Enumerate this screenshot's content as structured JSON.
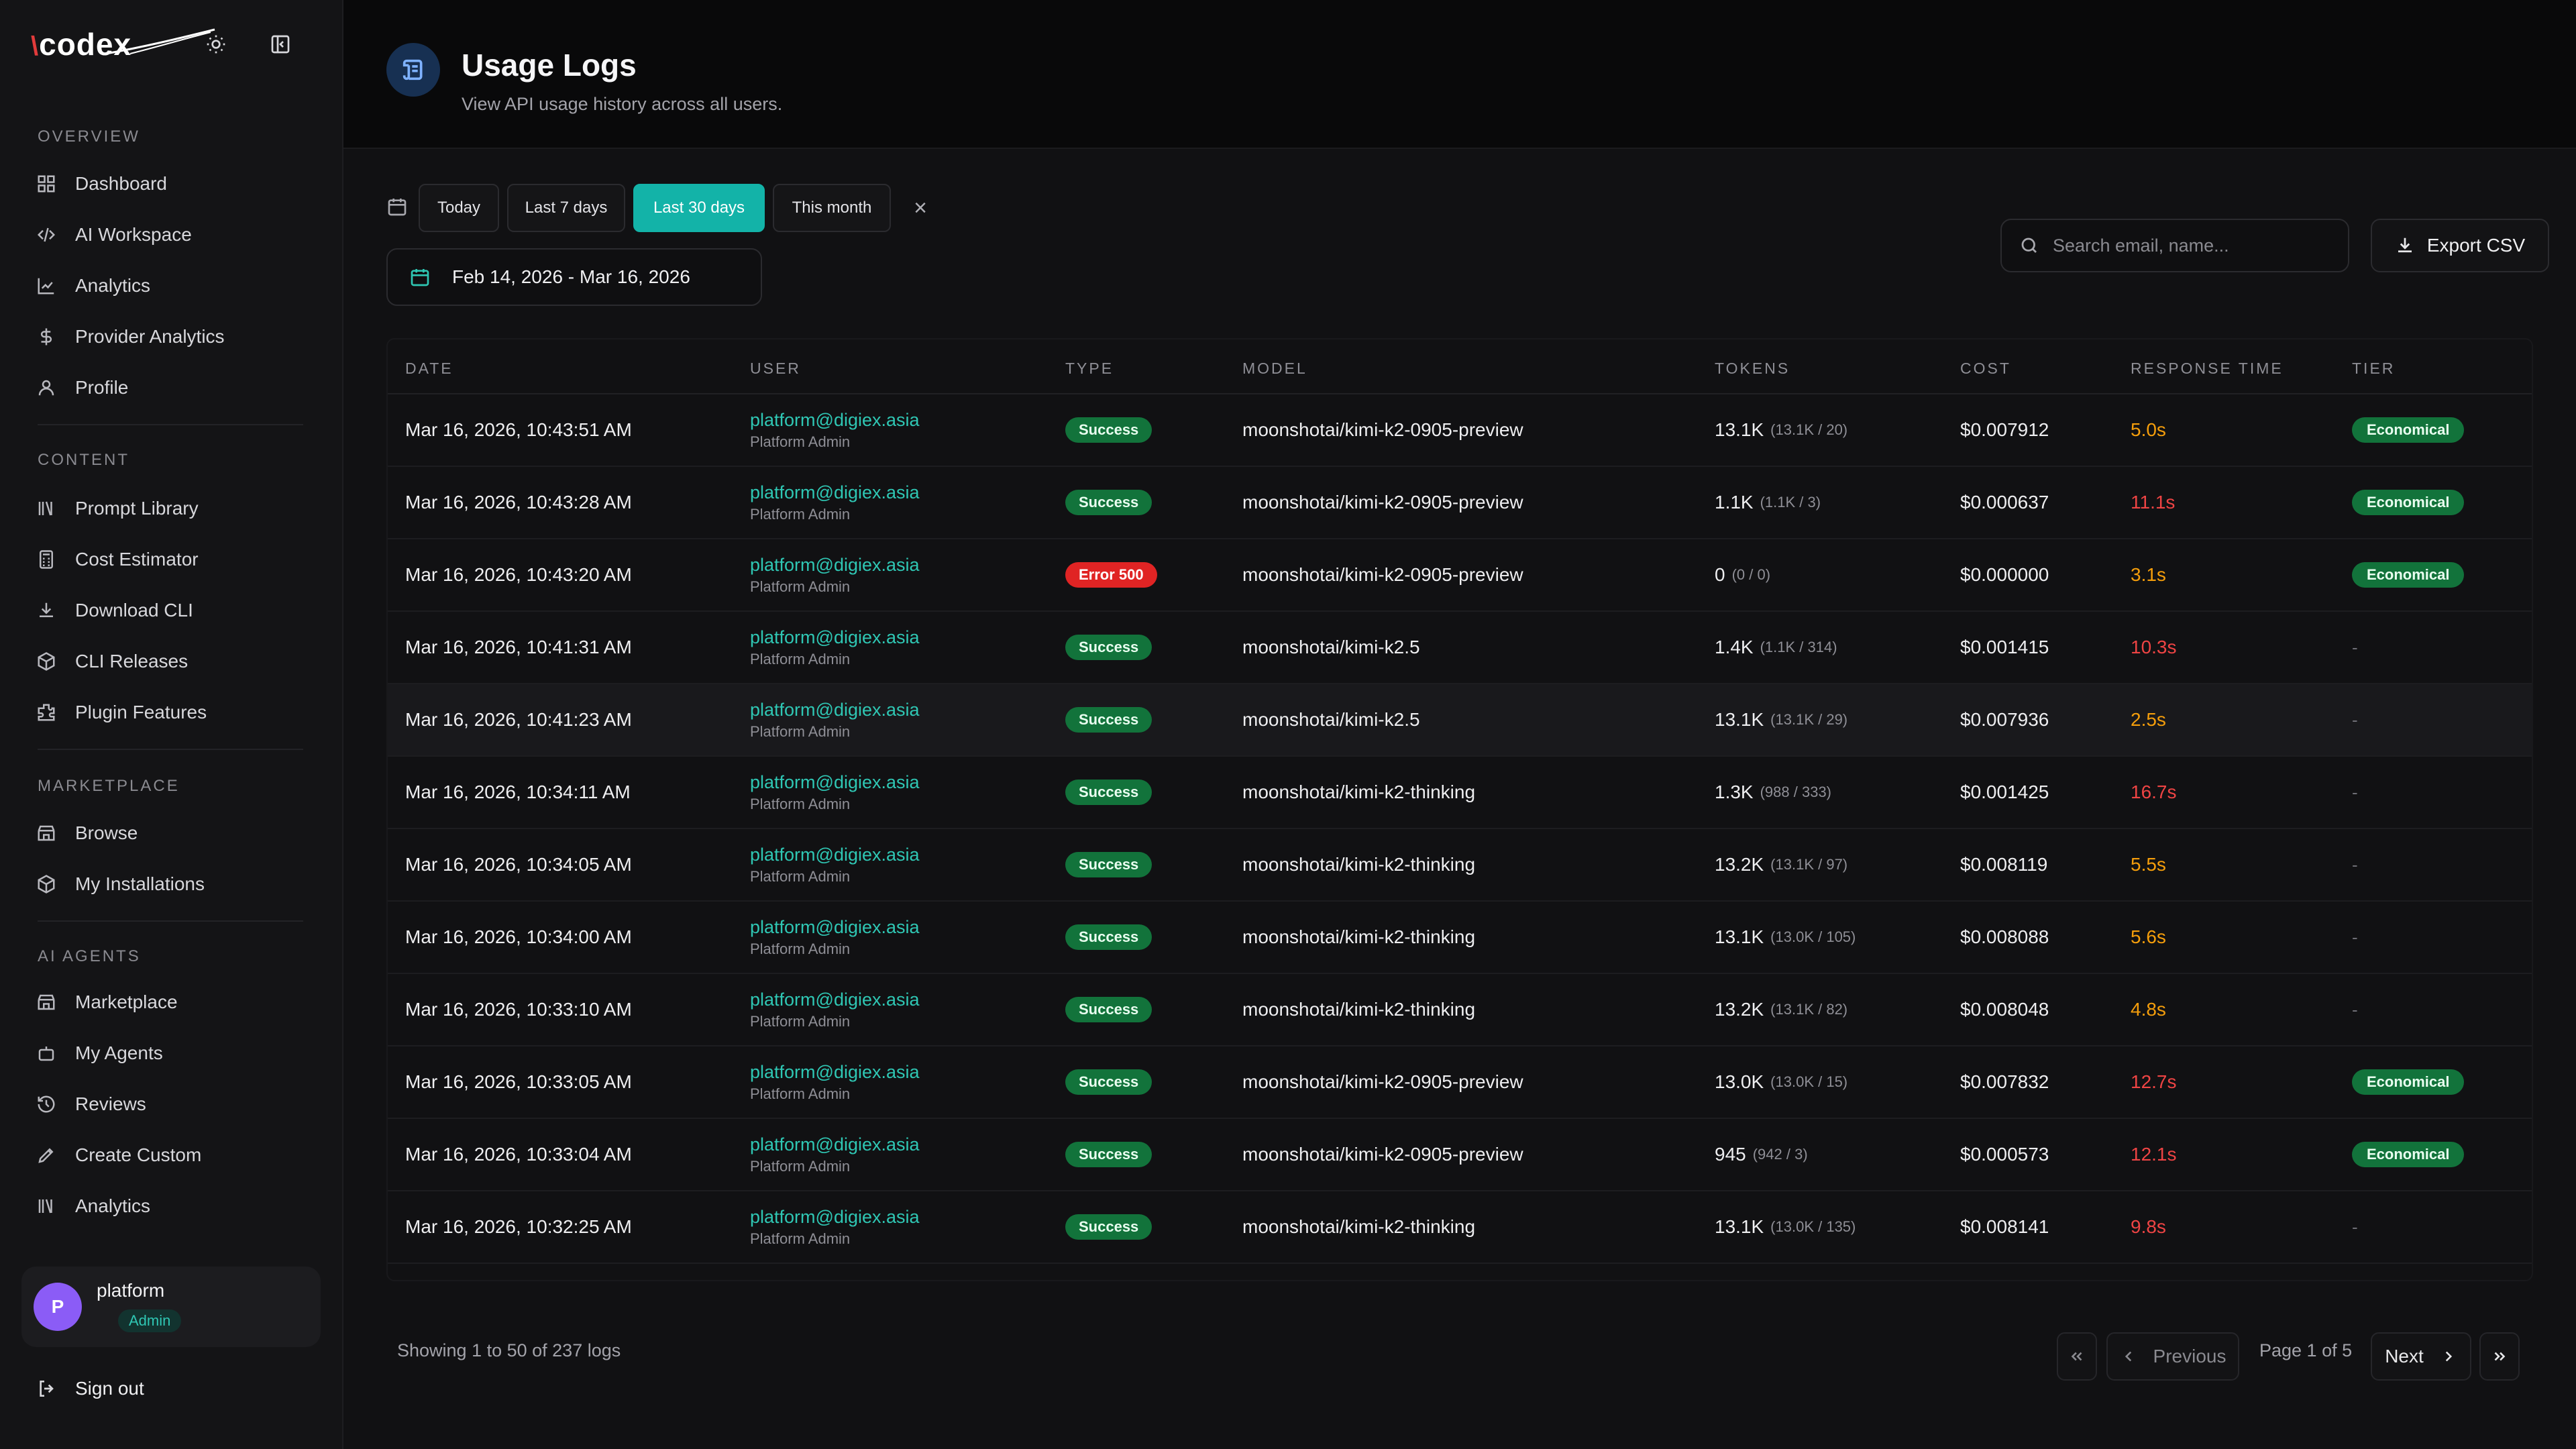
{
  "app": {
    "brand": "codex"
  },
  "sidebar": {
    "sections": [
      {
        "label": "OVERVIEW",
        "items": [
          "Dashboard",
          "AI Workspace",
          "Analytics",
          "Provider Analytics",
          "Profile"
        ]
      },
      {
        "label": "CONTENT",
        "items": [
          "Prompt Library",
          "Cost Estimator",
          "Download CLI",
          "CLI Releases",
          "Plugin Features"
        ]
      },
      {
        "label": "MARKETPLACE",
        "items": [
          "Browse",
          "My Installations"
        ]
      },
      {
        "label": "AI AGENTS",
        "items": [
          "Marketplace",
          "My Agents",
          "Reviews",
          "Create Custom",
          "Analytics"
        ]
      }
    ],
    "user": {
      "initial": "P",
      "name": "platform",
      "role": "Admin"
    },
    "signout": "Sign out"
  },
  "header": {
    "title": "Usage Logs",
    "subtitle": "View API usage history across all users."
  },
  "filters": {
    "presets": [
      "Today",
      "Last 7 days",
      "Last 30 days",
      "This month"
    ],
    "active_preset": "Last 30 days",
    "date_range": "Feb 14, 2026 - Mar 16, 2026",
    "search_placeholder": "Search email, name...",
    "export_label": "Export CSV"
  },
  "table": {
    "columns": [
      "DATE",
      "USER",
      "TYPE",
      "MODEL",
      "TOKENS",
      "COST",
      "RESPONSE TIME",
      "TIER"
    ],
    "rows": [
      {
        "date": "Mar 16, 2026, 10:43:51 AM",
        "email": "platform@digiex.asia",
        "role": "Platform Admin",
        "type": "Success",
        "model": "moonshotai/kimi-k2-0905-preview",
        "tokens": "13.1K",
        "tokens_detail": "(13.1K / 20)",
        "cost": "$0.007912",
        "rt": "5.0s",
        "tier": "Economical"
      },
      {
        "date": "Mar 16, 2026, 10:43:28 AM",
        "email": "platform@digiex.asia",
        "role": "Platform Admin",
        "type": "Success",
        "model": "moonshotai/kimi-k2-0905-preview",
        "tokens": "1.1K",
        "tokens_detail": "(1.1K / 3)",
        "cost": "$0.000637",
        "rt": "11.1s",
        "tier": "Economical"
      },
      {
        "date": "Mar 16, 2026, 10:43:20 AM",
        "email": "platform@digiex.asia",
        "role": "Platform Admin",
        "type": "Error 500",
        "model": "moonshotai/kimi-k2-0905-preview",
        "tokens": "0",
        "tokens_detail": "(0 / 0)",
        "cost": "$0.000000",
        "rt": "3.1s",
        "tier": "Economical"
      },
      {
        "date": "Mar 16, 2026, 10:41:31 AM",
        "email": "platform@digiex.asia",
        "role": "Platform Admin",
        "type": "Success",
        "model": "moonshotai/kimi-k2.5",
        "tokens": "1.4K",
        "tokens_detail": "(1.1K / 314)",
        "cost": "$0.001415",
        "rt": "10.3s",
        "tier": "-"
      },
      {
        "date": "Mar 16, 2026, 10:41:23 AM",
        "email": "platform@digiex.asia",
        "role": "Platform Admin",
        "type": "Success",
        "model": "moonshotai/kimi-k2.5",
        "tokens": "13.1K",
        "tokens_detail": "(13.1K / 29)",
        "cost": "$0.007936",
        "rt": "2.5s",
        "tier": "-"
      },
      {
        "date": "Mar 16, 2026, 10:34:11 AM",
        "email": "platform@digiex.asia",
        "role": "Platform Admin",
        "type": "Success",
        "model": "moonshotai/kimi-k2-thinking",
        "tokens": "1.3K",
        "tokens_detail": "(988 / 333)",
        "cost": "$0.001425",
        "rt": "16.7s",
        "tier": "-"
      },
      {
        "date": "Mar 16, 2026, 10:34:05 AM",
        "email": "platform@digiex.asia",
        "role": "Platform Admin",
        "type": "Success",
        "model": "moonshotai/kimi-k2-thinking",
        "tokens": "13.2K",
        "tokens_detail": "(13.1K / 97)",
        "cost": "$0.008119",
        "rt": "5.5s",
        "tier": "-"
      },
      {
        "date": "Mar 16, 2026, 10:34:00 AM",
        "email": "platform@digiex.asia",
        "role": "Platform Admin",
        "type": "Success",
        "model": "moonshotai/kimi-k2-thinking",
        "tokens": "13.1K",
        "tokens_detail": "(13.0K / 105)",
        "cost": "$0.008088",
        "rt": "5.6s",
        "tier": "-"
      },
      {
        "date": "Mar 16, 2026, 10:33:10 AM",
        "email": "platform@digiex.asia",
        "role": "Platform Admin",
        "type": "Success",
        "model": "moonshotai/kimi-k2-thinking",
        "tokens": "13.2K",
        "tokens_detail": "(13.1K / 82)",
        "cost": "$0.008048",
        "rt": "4.8s",
        "tier": "-"
      },
      {
        "date": "Mar 16, 2026, 10:33:05 AM",
        "email": "platform@digiex.asia",
        "role": "Platform Admin",
        "type": "Success",
        "model": "moonshotai/kimi-k2-0905-preview",
        "tokens": "13.0K",
        "tokens_detail": "(13.0K / 15)",
        "cost": "$0.007832",
        "rt": "12.7s",
        "tier": "Economical"
      },
      {
        "date": "Mar 16, 2026, 10:33:04 AM",
        "email": "platform@digiex.asia",
        "role": "Platform Admin",
        "type": "Success",
        "model": "moonshotai/kimi-k2-0905-preview",
        "tokens": "945",
        "tokens_detail": "(942 / 3)",
        "cost": "$0.000573",
        "rt": "12.1s",
        "tier": "Economical"
      },
      {
        "date": "Mar 16, 2026, 10:32:25 AM",
        "email": "platform@digiex.asia",
        "role": "Platform Admin",
        "type": "Success",
        "model": "moonshotai/kimi-k2-thinking",
        "tokens": "13.1K",
        "tokens_detail": "(13.0K / 135)",
        "cost": "$0.008141",
        "rt": "9.8s",
        "tier": "-"
      }
    ]
  },
  "pagination": {
    "summary": "Showing 1 to 50 of 237 logs",
    "previous": "Previous",
    "page": "Page 1 of 5",
    "next": "Next"
  },
  "colors": {
    "accent": "#13b3a8",
    "success": "#12733b",
    "error": "#e02424",
    "rt_fast": "#f59e0b",
    "rt_slow": "#ef4444"
  }
}
